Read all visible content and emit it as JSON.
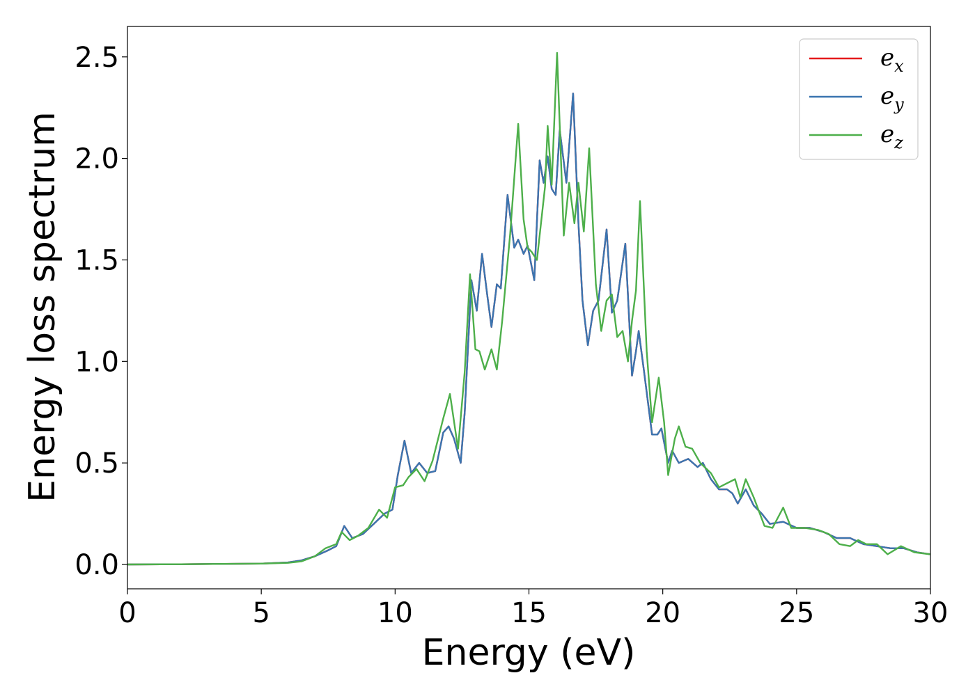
{
  "chart_data": {
    "type": "line",
    "title": "",
    "xlabel": "Energy (eV)",
    "ylabel": "Energy loss spectrum",
    "xlim": [
      0,
      30
    ],
    "ylim": [
      -0.12,
      2.65
    ],
    "x_ticks": [
      0,
      5,
      10,
      15,
      20,
      25,
      30
    ],
    "y_ticks": [
      0.0,
      0.5,
      1.0,
      1.5,
      2.0,
      2.5
    ],
    "x_tick_labels": [
      "0",
      "5",
      "10",
      "15",
      "20",
      "25",
      "30"
    ],
    "y_tick_labels": [
      "0.0",
      "0.5",
      "1.0",
      "1.5",
      "2.0",
      "2.5"
    ],
    "grid": false,
    "legend_position": "top-right",
    "series": [
      {
        "name": "e",
        "subscript": "x",
        "color": "#e41a1c",
        "points": [
          [
            0,
            0
          ],
          [
            2,
            0.001
          ],
          [
            4,
            0.003
          ],
          [
            5,
            0.004
          ],
          [
            6,
            0.01
          ],
          [
            6.5,
            0.02
          ],
          [
            7,
            0.04
          ],
          [
            7.5,
            0.07
          ],
          [
            7.8,
            0.09
          ],
          [
            8.1,
            0.19
          ],
          [
            8.4,
            0.13
          ],
          [
            8.8,
            0.15
          ],
          [
            9.2,
            0.2
          ],
          [
            9.6,
            0.25
          ],
          [
            9.9,
            0.27
          ],
          [
            10.1,
            0.44
          ],
          [
            10.35,
            0.61
          ],
          [
            10.6,
            0.45
          ],
          [
            10.9,
            0.5
          ],
          [
            11.2,
            0.45
          ],
          [
            11.5,
            0.46
          ],
          [
            11.8,
            0.65
          ],
          [
            12.0,
            0.68
          ],
          [
            12.2,
            0.62
          ],
          [
            12.45,
            0.5
          ],
          [
            12.6,
            0.75
          ],
          [
            12.85,
            1.4
          ],
          [
            13.05,
            1.25
          ],
          [
            13.25,
            1.53
          ],
          [
            13.45,
            1.32
          ],
          [
            13.6,
            1.17
          ],
          [
            13.8,
            1.38
          ],
          [
            13.95,
            1.36
          ],
          [
            14.2,
            1.82
          ],
          [
            14.45,
            1.56
          ],
          [
            14.6,
            1.6
          ],
          [
            14.8,
            1.53
          ],
          [
            14.95,
            1.57
          ],
          [
            15.2,
            1.4
          ],
          [
            15.4,
            1.99
          ],
          [
            15.55,
            1.88
          ],
          [
            15.7,
            2.01
          ],
          [
            15.85,
            1.85
          ],
          [
            16.0,
            1.82
          ],
          [
            16.15,
            2.14
          ],
          [
            16.4,
            1.88
          ],
          [
            16.65,
            2.32
          ],
          [
            16.85,
            1.68
          ],
          [
            17.0,
            1.3
          ],
          [
            17.2,
            1.08
          ],
          [
            17.4,
            1.25
          ],
          [
            17.6,
            1.3
          ],
          [
            17.9,
            1.65
          ],
          [
            18.1,
            1.24
          ],
          [
            18.3,
            1.3
          ],
          [
            18.6,
            1.58
          ],
          [
            18.85,
            0.93
          ],
          [
            19.0,
            1.05
          ],
          [
            19.1,
            1.15
          ],
          [
            19.3,
            0.95
          ],
          [
            19.6,
            0.64
          ],
          [
            19.8,
            0.64
          ],
          [
            19.95,
            0.67
          ],
          [
            20.2,
            0.5
          ],
          [
            20.35,
            0.56
          ],
          [
            20.6,
            0.5
          ],
          [
            20.95,
            0.52
          ],
          [
            21.3,
            0.48
          ],
          [
            21.5,
            0.5
          ],
          [
            21.8,
            0.42
          ],
          [
            22.1,
            0.37
          ],
          [
            22.4,
            0.37
          ],
          [
            22.6,
            0.35
          ],
          [
            22.8,
            0.3
          ],
          [
            23.1,
            0.37
          ],
          [
            23.4,
            0.29
          ],
          [
            23.7,
            0.25
          ],
          [
            24.0,
            0.2
          ],
          [
            24.5,
            0.21
          ],
          [
            25.0,
            0.18
          ],
          [
            25.5,
            0.18
          ],
          [
            26.0,
            0.16
          ],
          [
            26.5,
            0.13
          ],
          [
            27.0,
            0.13
          ],
          [
            27.5,
            0.1
          ],
          [
            28.0,
            0.09
          ],
          [
            28.5,
            0.08
          ],
          [
            29.0,
            0.08
          ],
          [
            29.5,
            0.06
          ],
          [
            30.0,
            0.05
          ]
        ]
      },
      {
        "name": "e",
        "subscript": "y",
        "color": "#3a75b0",
        "points": [
          [
            0,
            0
          ],
          [
            2,
            0.001
          ],
          [
            4,
            0.003
          ],
          [
            5,
            0.004
          ],
          [
            6,
            0.01
          ],
          [
            6.5,
            0.02
          ],
          [
            7,
            0.04
          ],
          [
            7.5,
            0.07
          ],
          [
            7.8,
            0.09
          ],
          [
            8.1,
            0.19
          ],
          [
            8.4,
            0.13
          ],
          [
            8.8,
            0.15
          ],
          [
            9.2,
            0.2
          ],
          [
            9.6,
            0.25
          ],
          [
            9.9,
            0.27
          ],
          [
            10.1,
            0.44
          ],
          [
            10.35,
            0.61
          ],
          [
            10.6,
            0.45
          ],
          [
            10.9,
            0.5
          ],
          [
            11.2,
            0.45
          ],
          [
            11.5,
            0.46
          ],
          [
            11.8,
            0.65
          ],
          [
            12.0,
            0.68
          ],
          [
            12.2,
            0.62
          ],
          [
            12.45,
            0.5
          ],
          [
            12.6,
            0.75
          ],
          [
            12.85,
            1.4
          ],
          [
            13.05,
            1.25
          ],
          [
            13.25,
            1.53
          ],
          [
            13.45,
            1.32
          ],
          [
            13.6,
            1.17
          ],
          [
            13.8,
            1.38
          ],
          [
            13.95,
            1.36
          ],
          [
            14.2,
            1.82
          ],
          [
            14.45,
            1.56
          ],
          [
            14.6,
            1.6
          ],
          [
            14.8,
            1.53
          ],
          [
            14.95,
            1.57
          ],
          [
            15.2,
            1.4
          ],
          [
            15.4,
            1.99
          ],
          [
            15.55,
            1.88
          ],
          [
            15.7,
            2.01
          ],
          [
            15.85,
            1.85
          ],
          [
            16.0,
            1.82
          ],
          [
            16.15,
            2.14
          ],
          [
            16.4,
            1.88
          ],
          [
            16.65,
            2.32
          ],
          [
            16.85,
            1.68
          ],
          [
            17.0,
            1.3
          ],
          [
            17.2,
            1.08
          ],
          [
            17.4,
            1.25
          ],
          [
            17.6,
            1.3
          ],
          [
            17.9,
            1.65
          ],
          [
            18.1,
            1.24
          ],
          [
            18.3,
            1.3
          ],
          [
            18.6,
            1.58
          ],
          [
            18.85,
            0.93
          ],
          [
            19.0,
            1.05
          ],
          [
            19.1,
            1.15
          ],
          [
            19.3,
            0.95
          ],
          [
            19.6,
            0.64
          ],
          [
            19.8,
            0.64
          ],
          [
            19.95,
            0.67
          ],
          [
            20.2,
            0.5
          ],
          [
            20.35,
            0.56
          ],
          [
            20.6,
            0.5
          ],
          [
            20.95,
            0.52
          ],
          [
            21.3,
            0.48
          ],
          [
            21.5,
            0.5
          ],
          [
            21.8,
            0.42
          ],
          [
            22.1,
            0.37
          ],
          [
            22.4,
            0.37
          ],
          [
            22.6,
            0.35
          ],
          [
            22.8,
            0.3
          ],
          [
            23.1,
            0.37
          ],
          [
            23.4,
            0.29
          ],
          [
            23.7,
            0.25
          ],
          [
            24.0,
            0.2
          ],
          [
            24.5,
            0.21
          ],
          [
            25.0,
            0.18
          ],
          [
            25.5,
            0.18
          ],
          [
            26.0,
            0.16
          ],
          [
            26.5,
            0.13
          ],
          [
            27.0,
            0.13
          ],
          [
            27.5,
            0.1
          ],
          [
            28.0,
            0.09
          ],
          [
            28.5,
            0.08
          ],
          [
            29.0,
            0.08
          ],
          [
            29.5,
            0.06
          ],
          [
            30.0,
            0.05
          ]
        ]
      },
      {
        "name": "e",
        "subscript": "z",
        "color": "#4daf4a",
        "points": [
          [
            0,
            0
          ],
          [
            2,
            0.001
          ],
          [
            4,
            0.003
          ],
          [
            5,
            0.004
          ],
          [
            6,
            0.008
          ],
          [
            6.5,
            0.015
          ],
          [
            7,
            0.04
          ],
          [
            7.4,
            0.08
          ],
          [
            7.8,
            0.1
          ],
          [
            8.0,
            0.16
          ],
          [
            8.3,
            0.12
          ],
          [
            8.6,
            0.14
          ],
          [
            9.0,
            0.18
          ],
          [
            9.4,
            0.27
          ],
          [
            9.7,
            0.23
          ],
          [
            10.0,
            0.38
          ],
          [
            10.3,
            0.39
          ],
          [
            10.5,
            0.43
          ],
          [
            10.8,
            0.47
          ],
          [
            11.1,
            0.41
          ],
          [
            11.4,
            0.51
          ],
          [
            11.8,
            0.72
          ],
          [
            12.05,
            0.84
          ],
          [
            12.35,
            0.57
          ],
          [
            12.6,
            0.95
          ],
          [
            12.8,
            1.43
          ],
          [
            13.0,
            1.06
          ],
          [
            13.15,
            1.05
          ],
          [
            13.35,
            0.96
          ],
          [
            13.6,
            1.06
          ],
          [
            13.8,
            0.96
          ],
          [
            14.0,
            1.2
          ],
          [
            14.3,
            1.63
          ],
          [
            14.6,
            2.17
          ],
          [
            14.8,
            1.7
          ],
          [
            14.95,
            1.56
          ],
          [
            15.1,
            1.54
          ],
          [
            15.3,
            1.5
          ],
          [
            15.6,
            1.86
          ],
          [
            15.7,
            2.16
          ],
          [
            15.85,
            1.87
          ],
          [
            16.05,
            2.52
          ],
          [
            16.3,
            1.62
          ],
          [
            16.5,
            1.88
          ],
          [
            16.7,
            1.68
          ],
          [
            16.85,
            1.88
          ],
          [
            17.05,
            1.64
          ],
          [
            17.25,
            2.05
          ],
          [
            17.5,
            1.38
          ],
          [
            17.7,
            1.15
          ],
          [
            17.9,
            1.3
          ],
          [
            18.1,
            1.33
          ],
          [
            18.3,
            1.12
          ],
          [
            18.5,
            1.15
          ],
          [
            18.7,
            1.0
          ],
          [
            18.85,
            1.2
          ],
          [
            19.0,
            1.35
          ],
          [
            19.15,
            1.79
          ],
          [
            19.4,
            1.05
          ],
          [
            19.6,
            0.7
          ],
          [
            19.85,
            0.92
          ],
          [
            20.05,
            0.7
          ],
          [
            20.2,
            0.44
          ],
          [
            20.45,
            0.62
          ],
          [
            20.6,
            0.68
          ],
          [
            20.85,
            0.58
          ],
          [
            21.1,
            0.57
          ],
          [
            21.4,
            0.5
          ],
          [
            21.8,
            0.45
          ],
          [
            22.1,
            0.38
          ],
          [
            22.4,
            0.4
          ],
          [
            22.7,
            0.42
          ],
          [
            22.9,
            0.33
          ],
          [
            23.1,
            0.42
          ],
          [
            23.4,
            0.33
          ],
          [
            23.8,
            0.19
          ],
          [
            24.1,
            0.18
          ],
          [
            24.5,
            0.28
          ],
          [
            24.8,
            0.18
          ],
          [
            25.3,
            0.18
          ],
          [
            25.8,
            0.17
          ],
          [
            26.2,
            0.15
          ],
          [
            26.6,
            0.1
          ],
          [
            27.0,
            0.09
          ],
          [
            27.3,
            0.12
          ],
          [
            27.6,
            0.1
          ],
          [
            28.0,
            0.1
          ],
          [
            28.4,
            0.05
          ],
          [
            28.9,
            0.09
          ],
          [
            29.4,
            0.06
          ],
          [
            30.0,
            0.05
          ]
        ]
      }
    ]
  }
}
